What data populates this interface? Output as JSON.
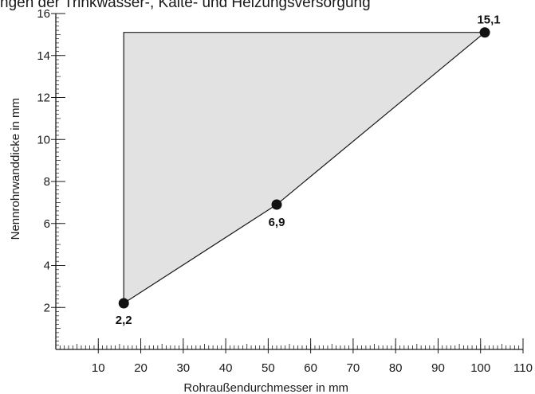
{
  "chart_data": {
    "type": "area",
    "title": "ngen der Trinkwasser-, Kälte- und Heizungsversorgung",
    "xlabel": "Rohraußendurchmesser in mm",
    "ylabel": "Nennrohrwanddicke in mm",
    "xlim": [
      0,
      110
    ],
    "ylim": [
      0,
      16
    ],
    "x_ticks": [
      10,
      20,
      30,
      40,
      50,
      60,
      70,
      80,
      90,
      100,
      110
    ],
    "y_ticks": [
      2,
      4,
      6,
      8,
      10,
      12,
      14,
      16
    ],
    "x_tick_labels": [
      "10",
      "20",
      "30",
      "40",
      "50",
      "60",
      "70",
      "80",
      "90",
      "100",
      "110"
    ],
    "y_tick_labels": [
      "2",
      "4",
      "6",
      "8",
      "10",
      "12",
      "14",
      "16"
    ],
    "grid": false,
    "region": [
      {
        "x": 16,
        "y": 2.2
      },
      {
        "x": 52,
        "y": 6.9
      },
      {
        "x": 101,
        "y": 15.1
      },
      {
        "x": 16,
        "y": 15.1
      }
    ],
    "points": [
      {
        "x": 16,
        "y": 2.2,
        "label": "2,2"
      },
      {
        "x": 52,
        "y": 6.9,
        "label": "6,9"
      },
      {
        "x": 101,
        "y": 15.1,
        "label": "15,1"
      }
    ],
    "colors": {
      "fill": "#e2e2e2",
      "line": "#1a1a1a",
      "point": "#111111"
    }
  }
}
